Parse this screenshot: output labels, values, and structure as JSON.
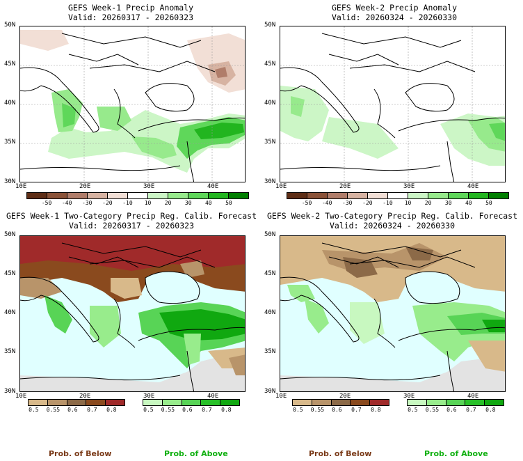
{
  "panels": [
    {
      "title": "GEFS Week-1 Precip Anomaly",
      "valid": "Valid: 20260317 - 20260323"
    },
    {
      "title": "GEFS Week-2 Precip Anomaly",
      "valid": "Valid: 20260324 - 20260330"
    },
    {
      "title": "GEFS Week-1 Two-Category Precip Reg. Calib. Forecast",
      "valid": "Valid: 20260317 - 20260323"
    },
    {
      "title": "GEFS Week-2 Two-Category Precip Reg. Calib. Forecast",
      "valid": "Valid: 20260324 - 20260330"
    }
  ],
  "lat_labels": [
    "50N",
    "45N",
    "40N",
    "35N",
    "30N"
  ],
  "lon_labels": [
    "10E",
    "20E",
    "30E",
    "40E"
  ],
  "anom_ticks": [
    "-50",
    "-40",
    "-30",
    "-20",
    "-10",
    "10",
    "20",
    "30",
    "40",
    "50"
  ],
  "anom_colors": [
    "#5e2e16",
    "#8a5238",
    "#b07d6a",
    "#d7b3a2",
    "#f2dfd6",
    "#ffffff",
    "#ccf6c6",
    "#97ea8c",
    "#5fd75a",
    "#22b51f",
    "#007f00"
  ],
  "below_ticks": [
    "0.5",
    "0.55",
    "0.6",
    "0.7",
    "0.8"
  ],
  "above_ticks": [
    "0.5",
    "0.55",
    "0.6",
    "0.7",
    "0.8"
  ],
  "below_colors": [
    "#d8b98a",
    "#b8946a",
    "#8c6a48",
    "#8a4a1e",
    "#a02a2a"
  ],
  "above_colors": [
    "#c8f8c0",
    "#98ec8c",
    "#58d456",
    "#28c028",
    "#10a810"
  ],
  "prob_below": "Prob. of Below",
  "prob_above": "Prob. of Above",
  "colors": {
    "ocean": "#e0ffff",
    "gray": "#e3e3e3",
    "below_text": "#7a3a18",
    "above_text": "#10b010"
  }
}
